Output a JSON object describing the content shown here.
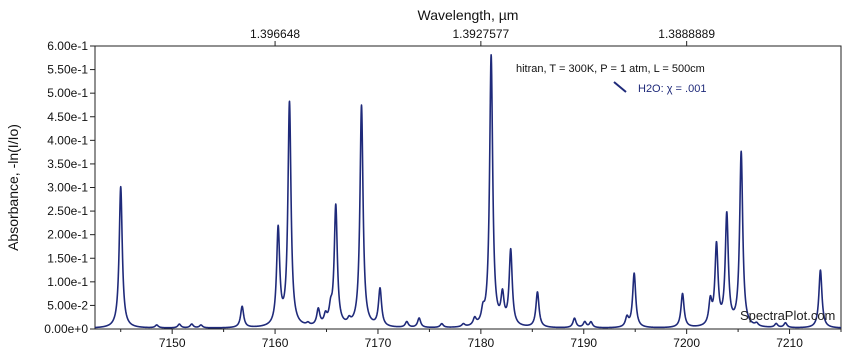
{
  "chart_data": {
    "type": "line",
    "xlabel": "",
    "ylabel": "Absorbance, -ln(I/Io)",
    "x2label": "Wavelength, µm",
    "xlim": [
      7142.5,
      7215
    ],
    "ylim": [
      0,
      0.6
    ],
    "x_ticks": [
      7150,
      7160,
      7170,
      7180,
      7190,
      7200,
      7210
    ],
    "x_tick_labels": [
      "7150",
      "7160",
      "7170",
      "7180",
      "7190",
      "7200",
      "7210"
    ],
    "y_ticks": [
      0,
      0.05,
      0.1,
      0.15,
      0.2,
      0.25,
      0.3,
      0.35,
      0.4,
      0.45,
      0.5,
      0.55,
      0.6
    ],
    "y_tick_labels": [
      "0.00e+0",
      "5.00e-2",
      "1.00e-1",
      "1.50e-1",
      "2.00e-1",
      "2.50e-1",
      "3.00e-1",
      "3.50e-1",
      "4.00e-1",
      "4.50e-1",
      "5.00e-1",
      "5.50e-1",
      "6.00e-1"
    ],
    "top_axis": {
      "tick_positions_cm1": [
        7160,
        7180,
        7200
      ],
      "tick_labels": [
        "1.396648",
        "1.3927577",
        "1.3888889"
      ]
    },
    "annotation": "hitran, T = 300K, P = 1 atm, L = 500cm",
    "legend": {
      "label": "H2O: χ = .001",
      "placement": "top-right"
    },
    "watermark": "SpectraPlot.com",
    "grid": false,
    "series": [
      {
        "name": "H2O: χ = .001",
        "color": "#1f2a7a",
        "line_width_hwhm": 0.18,
        "peaks": [
          {
            "x": 7145.0,
            "y": 0.3
          },
          {
            "x": 7148.5,
            "y": 0.006
          },
          {
            "x": 7150.7,
            "y": 0.008
          },
          {
            "x": 7151.9,
            "y": 0.008
          },
          {
            "x": 7152.8,
            "y": 0.006
          },
          {
            "x": 7156.8,
            "y": 0.045
          },
          {
            "x": 7160.3,
            "y": 0.205
          },
          {
            "x": 7161.4,
            "y": 0.475
          },
          {
            "x": 7163.2,
            "y": 0.005
          },
          {
            "x": 7164.2,
            "y": 0.035
          },
          {
            "x": 7164.9,
            "y": 0.02
          },
          {
            "x": 7165.4,
            "y": 0.03
          },
          {
            "x": 7165.9,
            "y": 0.255
          },
          {
            "x": 7167.2,
            "y": 0.01
          },
          {
            "x": 7168.4,
            "y": 0.47
          },
          {
            "x": 7170.2,
            "y": 0.08
          },
          {
            "x": 7172.8,
            "y": 0.012
          },
          {
            "x": 7174.0,
            "y": 0.02
          },
          {
            "x": 7176.2,
            "y": 0.008
          },
          {
            "x": 7178.3,
            "y": 0.006
          },
          {
            "x": 7179.4,
            "y": 0.015
          },
          {
            "x": 7180.2,
            "y": 0.025
          },
          {
            "x": 7181.0,
            "y": 0.575
          },
          {
            "x": 7182.1,
            "y": 0.06
          },
          {
            "x": 7182.9,
            "y": 0.16
          },
          {
            "x": 7185.5,
            "y": 0.075
          },
          {
            "x": 7189.1,
            "y": 0.02
          },
          {
            "x": 7190.1,
            "y": 0.012
          },
          {
            "x": 7190.7,
            "y": 0.012
          },
          {
            "x": 7194.2,
            "y": 0.02
          },
          {
            "x": 7194.9,
            "y": 0.115
          },
          {
            "x": 7199.6,
            "y": 0.072
          },
          {
            "x": 7202.3,
            "y": 0.05
          },
          {
            "x": 7202.9,
            "y": 0.17
          },
          {
            "x": 7203.9,
            "y": 0.235
          },
          {
            "x": 7205.3,
            "y": 0.37
          },
          {
            "x": 7206.8,
            "y": 0.006
          },
          {
            "x": 7208.7,
            "y": 0.008
          },
          {
            "x": 7209.6,
            "y": 0.01
          },
          {
            "x": 7213.0,
            "y": 0.123
          }
        ]
      }
    ]
  }
}
